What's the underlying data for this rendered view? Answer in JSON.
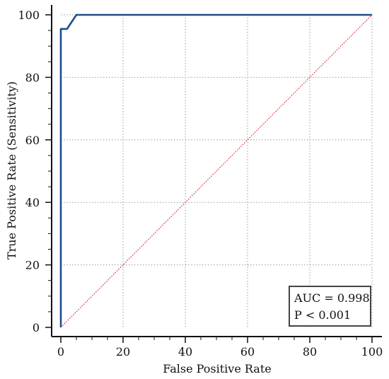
{
  "chart_data": {
    "type": "line",
    "xlabel": "False Positive Rate",
    "ylabel": "True Positive Rate (Sensitivity)",
    "xlim": [
      0,
      100
    ],
    "ylim": [
      0,
      100
    ],
    "x_ticks": [
      "0",
      "20",
      "40",
      "60",
      "80",
      "100"
    ],
    "y_ticks": [
      "0",
      "20",
      "40",
      "60",
      "80",
      "100"
    ],
    "grid": "on",
    "series": [
      {
        "x": [
          0,
          0,
          2,
          5,
          100
        ],
        "y": [
          0,
          95.5,
          95.5,
          100,
          100
        ],
        "color": "#1f4e8c",
        "style": "solid"
      },
      {
        "x": [
          0,
          100
        ],
        "y": [
          0,
          100
        ],
        "color": "#cc2222",
        "style": "dotted"
      }
    ],
    "annotation": {
      "auc": "AUC = 0.998",
      "p": "P < 0.001",
      "placement": "bottom-right"
    }
  }
}
